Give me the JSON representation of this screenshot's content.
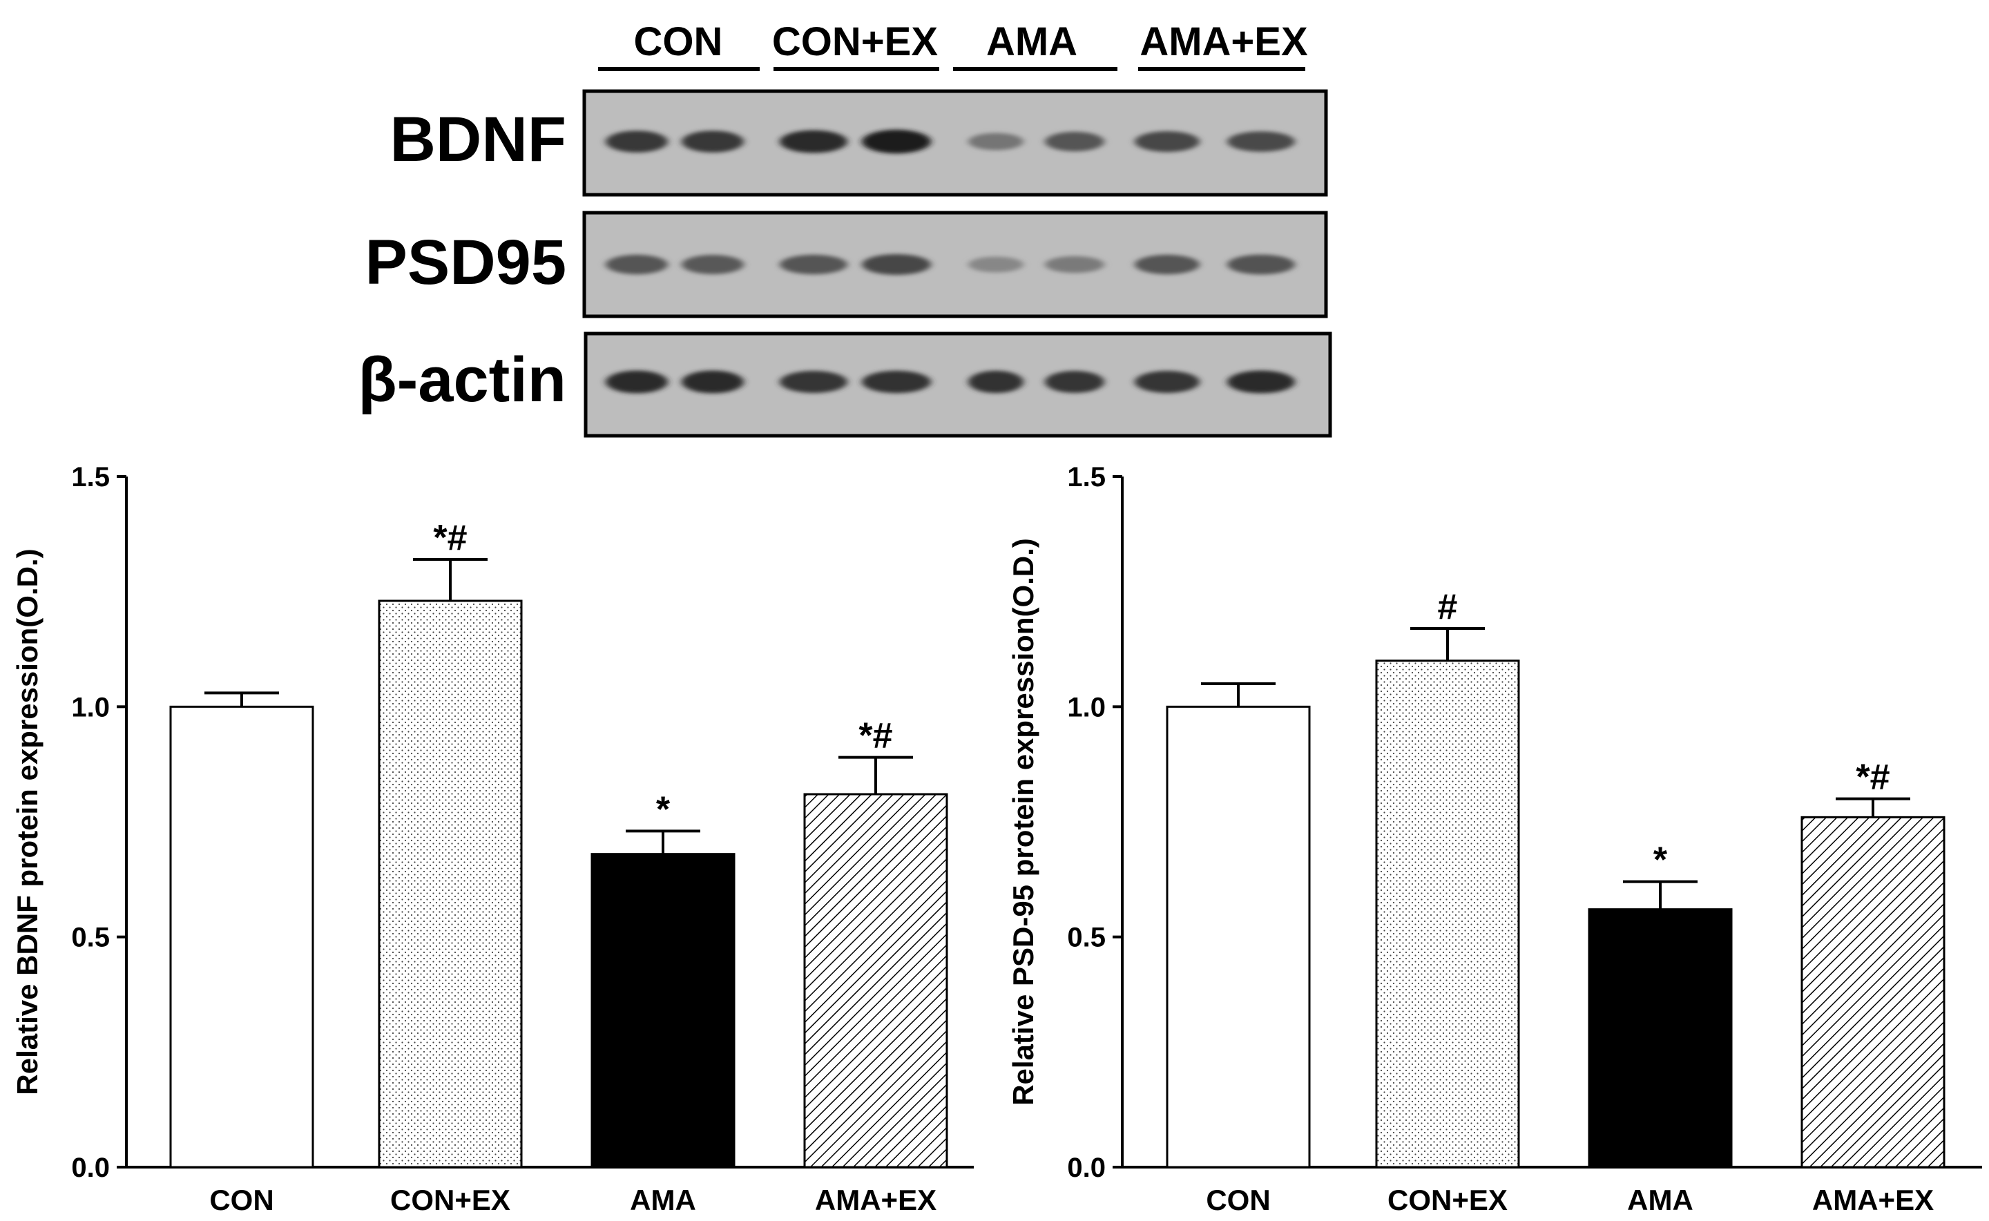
{
  "blot": {
    "groups": [
      "CON",
      "CON+EX",
      "AMA",
      "AMA+EX"
    ],
    "rows": [
      {
        "label": "BDNF",
        "intensities": [
          0.78,
          0.78,
          0.85,
          0.92,
          0.45,
          0.62,
          0.7,
          0.68
        ]
      },
      {
        "label": "PSD95",
        "intensities": [
          0.62,
          0.6,
          0.62,
          0.7,
          0.35,
          0.42,
          0.62,
          0.64
        ]
      },
      {
        "label": "β-actin",
        "intensities": [
          0.85,
          0.85,
          0.8,
          0.82,
          0.82,
          0.8,
          0.8,
          0.85
        ]
      }
    ]
  },
  "chart_data": [
    {
      "type": "bar",
      "categories": [
        "CON",
        "CON+EX",
        "AMA",
        "AMA+EX"
      ],
      "values": [
        1.0,
        1.23,
        0.68,
        0.81
      ],
      "errors": [
        0.03,
        0.09,
        0.05,
        0.08
      ],
      "annotations": [
        "",
        "*#",
        "*",
        "*#"
      ],
      "patterns": [
        "white",
        "dots",
        "black",
        "hatch"
      ],
      "ylabel": "Relative BDNF protein expression(O.D.)",
      "ylim": [
        0,
        1.5
      ],
      "yticks": [
        "0.0",
        "0.5",
        "1.0",
        "1.5"
      ],
      "grid": false
    },
    {
      "type": "bar",
      "categories": [
        "CON",
        "CON+EX",
        "AMA",
        "AMA+EX"
      ],
      "values": [
        1.0,
        1.1,
        0.56,
        0.76
      ],
      "errors": [
        0.05,
        0.07,
        0.06,
        0.04
      ],
      "annotations": [
        "",
        "#",
        "*",
        "*#"
      ],
      "patterns": [
        "white",
        "dots",
        "black",
        "hatch"
      ],
      "ylabel": "Relative PSD-95 protein expression(O.D.)",
      "ylim": [
        0,
        1.5
      ],
      "yticks": [
        "0.0",
        "0.5",
        "1.0",
        "1.5"
      ],
      "grid": false
    }
  ]
}
